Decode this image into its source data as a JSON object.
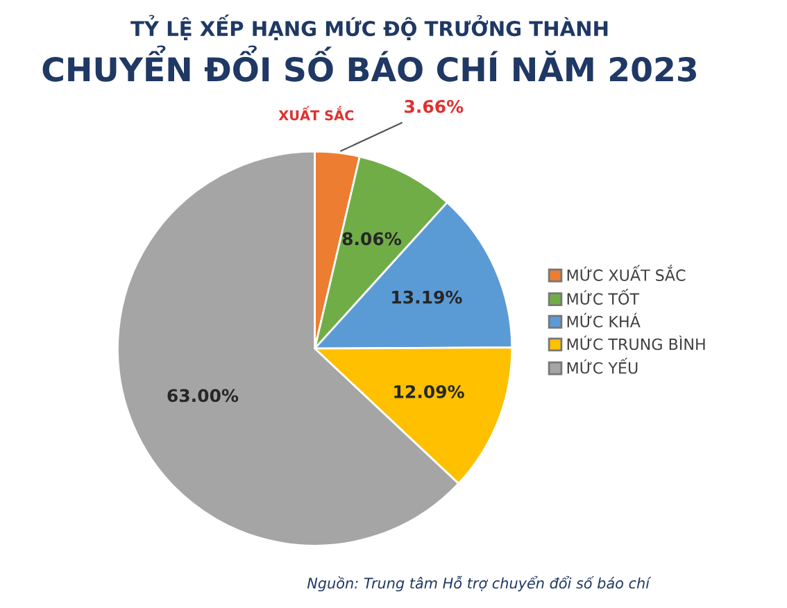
{
  "chart_data": {
    "type": "pie",
    "title": "TỶ LỆ XẾP HẠNG MỨC ĐỘ TRƯỞNG THÀNH",
    "subtitle": "CHUYỂN ĐỔI SỐ BÁO CHÍ NĂM 2023",
    "categories": [
      "MỨC XUẤT SẮC",
      "MỨC TỐT",
      "MỨC KHÁ",
      "MỨC TRUNG BÌNH",
      "MỨC YẾU"
    ],
    "values": [
      3.66,
      8.06,
      13.19,
      12.09,
      63.0
    ],
    "value_labels": [
      "3.66%",
      "8.06%",
      "13.19%",
      "12.09%",
      "63.00%"
    ],
    "colors": [
      "#ed7d31",
      "#70ad47",
      "#5b9bd5",
      "#ffc000",
      "#a5a5a5"
    ],
    "legend": "right",
    "annotations": [
      "XUẤT SẮC",
      "Nguồn: Trung tâm Hỗ trợ chuyển đổi số báo chí"
    ]
  }
}
